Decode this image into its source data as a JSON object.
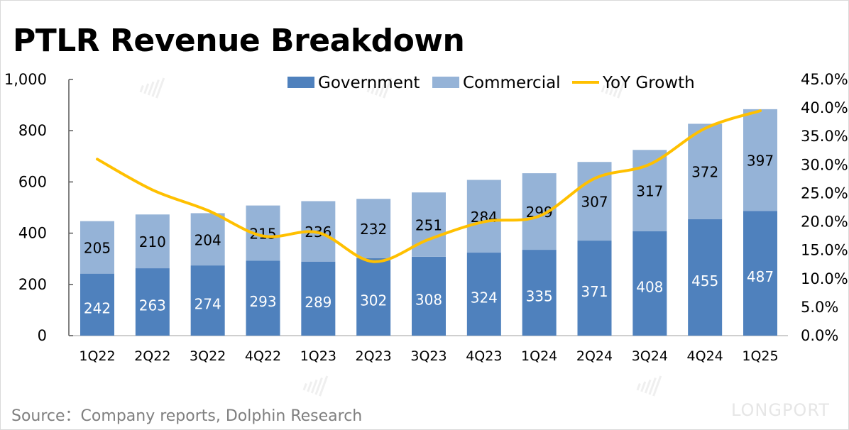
{
  "title": "PTLR Revenue Breakdown",
  "source": "Source：Company reports, Dolphin Research",
  "watermark": "DolphinResearch",
  "brand_logo": "LONGPORT",
  "colors": {
    "government": "#4f81bd",
    "commercial": "#95b3d7",
    "yoy": "#ffc000"
  },
  "chart_data": {
    "type": "bar",
    "stacked": true,
    "title": "PTLR Revenue Breakdown",
    "categories": [
      "1Q22",
      "2Q22",
      "3Q22",
      "4Q22",
      "1Q23",
      "2Q23",
      "3Q23",
      "4Q23",
      "1Q24",
      "2Q24",
      "3Q24",
      "4Q24",
      "1Q25"
    ],
    "series": [
      {
        "name": "Government",
        "type": "bar",
        "axis": "left",
        "values": [
          242,
          263,
          274,
          293,
          289,
          302,
          308,
          324,
          335,
          371,
          408,
          455,
          487
        ]
      },
      {
        "name": "Commercial",
        "type": "bar",
        "axis": "left",
        "values": [
          205,
          210,
          204,
          215,
          236,
          232,
          251,
          284,
          299,
          307,
          317,
          372,
          397
        ]
      },
      {
        "name": "YoY Growth",
        "type": "line",
        "axis": "right",
        "values": [
          31.0,
          25.6,
          22.0,
          17.5,
          18.1,
          13.0,
          16.9,
          20.0,
          21.0,
          27.6,
          30.1,
          36.4,
          39.5
        ]
      }
    ],
    "ylim": [
      0,
      1000
    ],
    "yticks": [
      "0",
      "200",
      "400",
      "600",
      "800",
      "1,000"
    ],
    "y2lim": [
      0,
      45
    ],
    "y2ticks": [
      "0.0%",
      "5.0%",
      "10.0%",
      "15.0%",
      "20.0%",
      "25.0%",
      "30.0%",
      "35.0%",
      "40.0%",
      "45.0%"
    ],
    "legend": "top-right",
    "grid": false
  }
}
